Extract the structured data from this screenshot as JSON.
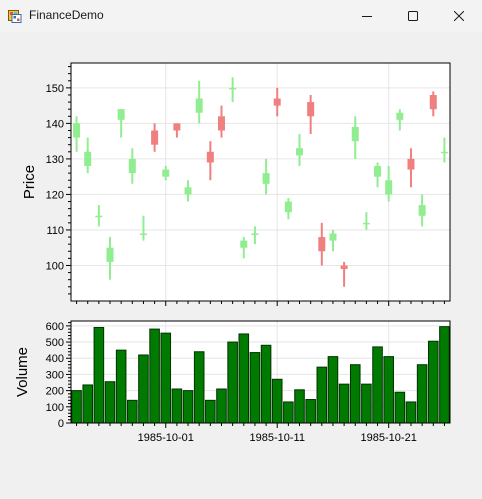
{
  "window": {
    "title": "FinanceDemo",
    "icons": {
      "app": "app-icon",
      "minimize": "minimize-icon",
      "maximize": "maximize-icon",
      "close": "close-icon"
    }
  },
  "colors": {
    "up": "#90ee90",
    "down": "#f08080",
    "volume_fill": "#007a00",
    "volume_stroke": "#003300",
    "grid": "#e6e6e6",
    "axis": "#000000"
  },
  "chart_data": [
    {
      "type": "candlestick",
      "ylabel": "Price",
      "ylim": [
        90,
        157
      ],
      "yticks": [
        100,
        110,
        120,
        130,
        140,
        150
      ],
      "grid": true,
      "x_axis_labels_visible": false,
      "candles": [
        {
          "date": "1985-09-23",
          "open": 136,
          "close": 140,
          "high": 142,
          "low": 132
        },
        {
          "date": "1985-09-24",
          "open": 128,
          "close": 132,
          "high": 136,
          "low": 126
        },
        {
          "date": "1985-09-25",
          "open": 114,
          "close": 114,
          "high": 117,
          "low": 111
        },
        {
          "date": "1985-09-26",
          "open": 101,
          "close": 105,
          "high": 108,
          "low": 96
        },
        {
          "date": "1985-09-27",
          "open": 141,
          "close": 144,
          "high": 144,
          "low": 136
        },
        {
          "date": "1985-09-28",
          "open": 126,
          "close": 130,
          "high": 133,
          "low": 123
        },
        {
          "date": "1985-09-29",
          "open": 109,
          "close": 109,
          "high": 114,
          "low": 107
        },
        {
          "date": "1985-09-30",
          "open": 138,
          "close": 134,
          "high": 140,
          "low": 132
        },
        {
          "date": "1985-10-01",
          "open": 125,
          "close": 127,
          "high": 128,
          "low": 124
        },
        {
          "date": "1985-10-02",
          "open": 140,
          "close": 138,
          "high": 140,
          "low": 136
        },
        {
          "date": "1985-10-03",
          "open": 120,
          "close": 122,
          "high": 124,
          "low": 118
        },
        {
          "date": "1985-10-04",
          "open": 143,
          "close": 147,
          "high": 152,
          "low": 140
        },
        {
          "date": "1985-10-05",
          "open": 132,
          "close": 129,
          "high": 135,
          "low": 124
        },
        {
          "date": "1985-10-06",
          "open": 142,
          "close": 138,
          "high": 145,
          "low": 136
        },
        {
          "date": "1985-10-07",
          "open": 150,
          "close": 150,
          "high": 153,
          "low": 146
        },
        {
          "date": "1985-10-08",
          "open": 105,
          "close": 107,
          "high": 108,
          "low": 102
        },
        {
          "date": "1985-10-09",
          "open": 109,
          "close": 109,
          "high": 111,
          "low": 106
        },
        {
          "date": "1985-10-10",
          "open": 123,
          "close": 126,
          "high": 130,
          "low": 120
        },
        {
          "date": "1985-10-11",
          "open": 147,
          "close": 145,
          "high": 150,
          "low": 142
        },
        {
          "date": "1985-10-12",
          "open": 115,
          "close": 118,
          "high": 119,
          "low": 113
        },
        {
          "date": "1985-10-13",
          "open": 131,
          "close": 133,
          "high": 137,
          "low": 128
        },
        {
          "date": "1985-10-14",
          "open": 146,
          "close": 142,
          "high": 148,
          "low": 137
        },
        {
          "date": "1985-10-15",
          "open": 108,
          "close": 104,
          "high": 112,
          "low": 100
        },
        {
          "date": "1985-10-16",
          "open": 107,
          "close": 109,
          "high": 110,
          "low": 104
        },
        {
          "date": "1985-10-17",
          "open": 100,
          "close": 99,
          "high": 101,
          "low": 94
        },
        {
          "date": "1985-10-18",
          "open": 135,
          "close": 139,
          "high": 142,
          "low": 130
        },
        {
          "date": "1985-10-19",
          "open": 112,
          "close": 112,
          "high": 115,
          "low": 110
        },
        {
          "date": "1985-10-20",
          "open": 125,
          "close": 128,
          "high": 129,
          "low": 122
        },
        {
          "date": "1985-10-21",
          "open": 120,
          "close": 124,
          "high": 128,
          "low": 118
        },
        {
          "date": "1985-10-22",
          "open": 141,
          "close": 143,
          "high": 144,
          "low": 138
        },
        {
          "date": "1985-10-23",
          "open": 130,
          "close": 127,
          "high": 133,
          "low": 122
        },
        {
          "date": "1985-10-24",
          "open": 114,
          "close": 117,
          "high": 120,
          "low": 111
        },
        {
          "date": "1985-10-25",
          "open": 148,
          "close": 144,
          "high": 149,
          "low": 142
        },
        {
          "date": "1985-10-26",
          "open": 132,
          "close": 132,
          "high": 136,
          "low": 129
        }
      ]
    },
    {
      "type": "bar",
      "ylabel": "Volume",
      "ylim": [
        0,
        630
      ],
      "yticks": [
        0,
        100,
        200,
        300,
        400,
        500,
        600
      ],
      "xticks": [
        "1985-10-01",
        "1985-10-11",
        "1985-10-21"
      ],
      "grid": true,
      "categories": [
        "1985-09-23",
        "1985-09-24",
        "1985-09-25",
        "1985-09-26",
        "1985-09-27",
        "1985-09-28",
        "1985-09-29",
        "1985-09-30",
        "1985-10-01",
        "1985-10-02",
        "1985-10-03",
        "1985-10-04",
        "1985-10-05",
        "1985-10-06",
        "1985-10-07",
        "1985-10-08",
        "1985-10-09",
        "1985-10-10",
        "1985-10-11",
        "1985-10-12",
        "1985-10-13",
        "1985-10-14",
        "1985-10-15",
        "1985-10-16",
        "1985-10-17",
        "1985-10-18",
        "1985-10-19",
        "1985-10-20",
        "1985-10-21",
        "1985-10-22",
        "1985-10-23",
        "1985-10-24",
        "1985-10-25",
        "1985-10-26"
      ],
      "values": [
        200,
        235,
        590,
        255,
        450,
        140,
        420,
        580,
        555,
        210,
        200,
        440,
        140,
        210,
        500,
        550,
        435,
        480,
        270,
        130,
        205,
        145,
        345,
        410,
        240,
        360,
        240,
        470,
        410,
        190,
        130,
        360,
        505,
        595
      ]
    }
  ]
}
